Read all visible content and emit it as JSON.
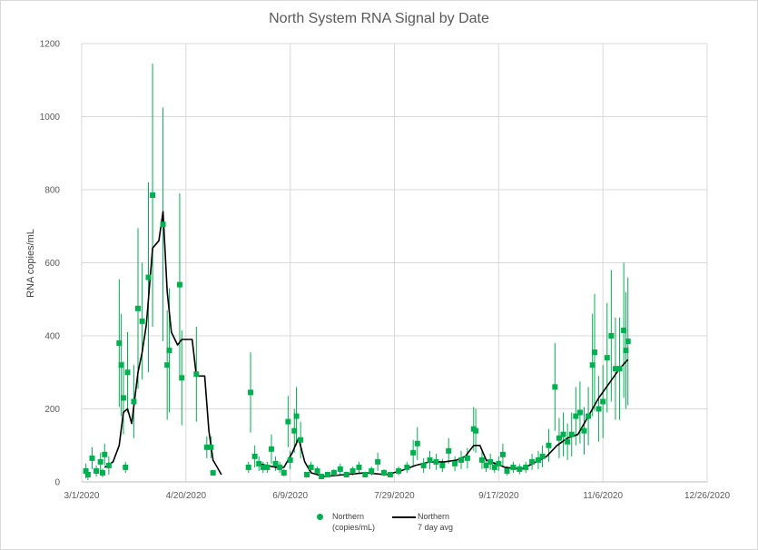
{
  "chart_data": {
    "type": "scatter",
    "title": "North System RNA Signal by Date",
    "ylabel": "RNA copies/mL",
    "xlabel": "",
    "ylim": [
      0,
      1200
    ],
    "yticks": [
      0,
      200,
      400,
      600,
      800,
      1000,
      1200
    ],
    "xlim": [
      "3/1/2020",
      "12/26/2020"
    ],
    "xticks": [
      "3/1/2020",
      "4/20/2020",
      "6/9/2020",
      "7/29/2020",
      "9/17/2020",
      "11/6/2020",
      "12/26/2020"
    ],
    "grid": true,
    "legend_position": "bottom",
    "colors": {
      "points": "#00b050",
      "avg_line": "#000000"
    },
    "series": [
      {
        "name": "Northern (copies/mL)",
        "style": "points-with-error-bars",
        "points": [
          {
            "date": "2020-03-03",
            "y": 30,
            "err": 20
          },
          {
            "date": "2020-03-04",
            "y": 20,
            "err": 15
          },
          {
            "date": "2020-03-06",
            "y": 65,
            "err": 30
          },
          {
            "date": "2020-03-08",
            "y": 30,
            "err": 15
          },
          {
            "date": "2020-03-10",
            "y": 55,
            "err": 25
          },
          {
            "date": "2020-03-11",
            "y": 25,
            "err": 12
          },
          {
            "date": "2020-03-12",
            "y": 75,
            "err": 30
          },
          {
            "date": "2020-03-14",
            "y": 45,
            "err": 25
          },
          {
            "date": "2020-03-19",
            "y": 380,
            "err": 175
          },
          {
            "date": "2020-03-20",
            "y": 320,
            "err": 140
          },
          {
            "date": "2020-03-21",
            "y": 230,
            "err": 100
          },
          {
            "date": "2020-03-22",
            "y": 40,
            "err": 15
          },
          {
            "date": "2020-03-23",
            "y": 300,
            "err": 110
          },
          {
            "date": "2020-03-26",
            "y": 220,
            "err": 100
          },
          {
            "date": "2020-03-28",
            "y": 475,
            "err": 220
          },
          {
            "date": "2020-03-30",
            "y": 440,
            "err": 160
          },
          {
            "date": "2020-04-02",
            "y": 560,
            "err": 260
          },
          {
            "date": "2020-04-04",
            "y": 785,
            "err": 360
          },
          {
            "date": "2020-04-09",
            "y": 705,
            "err": 320
          },
          {
            "date": "2020-04-11",
            "y": 320,
            "err": 150
          },
          {
            "date": "2020-04-12",
            "y": 360,
            "err": 170
          },
          {
            "date": "2020-04-17",
            "y": 540,
            "err": 250
          },
          {
            "date": "2020-04-18",
            "y": 285,
            "err": 130
          },
          {
            "date": "2020-04-25",
            "y": 295,
            "err": 130
          },
          {
            "date": "2020-04-30",
            "y": 95,
            "err": 30
          },
          {
            "date": "2020-05-02",
            "y": 95,
            "err": 30
          },
          {
            "date": "2020-05-03",
            "y": 25,
            "err": 8
          },
          {
            "date": "2020-05-20",
            "y": 40,
            "err": 15
          },
          {
            "date": "2020-05-21",
            "y": 245,
            "err": 110
          },
          {
            "date": "2020-05-23",
            "y": 70,
            "err": 30
          },
          {
            "date": "2020-05-25",
            "y": 50,
            "err": 20
          },
          {
            "date": "2020-05-27",
            "y": 40,
            "err": 15
          },
          {
            "date": "2020-05-29",
            "y": 40,
            "err": 15
          },
          {
            "date": "2020-05-31",
            "y": 90,
            "err": 40
          },
          {
            "date": "2020-06-02",
            "y": 50,
            "err": 20
          },
          {
            "date": "2020-06-04",
            "y": 40,
            "err": 15
          },
          {
            "date": "2020-06-06",
            "y": 25,
            "err": 10
          },
          {
            "date": "2020-06-08",
            "y": 165,
            "err": 70
          },
          {
            "date": "2020-06-09",
            "y": 60,
            "err": 25
          },
          {
            "date": "2020-06-11",
            "y": 140,
            "err": 60
          },
          {
            "date": "2020-06-12",
            "y": 180,
            "err": 80
          },
          {
            "date": "2020-06-14",
            "y": 115,
            "err": 50
          },
          {
            "date": "2020-06-17",
            "y": 20,
            "err": 8
          },
          {
            "date": "2020-06-19",
            "y": 40,
            "err": 15
          },
          {
            "date": "2020-06-22",
            "y": 30,
            "err": 12
          },
          {
            "date": "2020-06-24",
            "y": 15,
            "err": 6
          },
          {
            "date": "2020-06-27",
            "y": 20,
            "err": 8
          },
          {
            "date": "2020-06-30",
            "y": 25,
            "err": 10
          },
          {
            "date": "2020-07-03",
            "y": 35,
            "err": 15
          },
          {
            "date": "2020-07-06",
            "y": 20,
            "err": 8
          },
          {
            "date": "2020-07-09",
            "y": 30,
            "err": 12
          },
          {
            "date": "2020-07-12",
            "y": 40,
            "err": 15
          },
          {
            "date": "2020-07-15",
            "y": 20,
            "err": 8
          },
          {
            "date": "2020-07-18",
            "y": 30,
            "err": 12
          },
          {
            "date": "2020-07-21",
            "y": 55,
            "err": 25
          },
          {
            "date": "2020-07-24",
            "y": 25,
            "err": 10
          },
          {
            "date": "2020-07-27",
            "y": 20,
            "err": 8
          },
          {
            "date": "2020-07-31",
            "y": 30,
            "err": 12
          },
          {
            "date": "2020-08-04",
            "y": 40,
            "err": 15
          },
          {
            "date": "2020-08-07",
            "y": 80,
            "err": 35
          },
          {
            "date": "2020-08-09",
            "y": 105,
            "err": 45
          },
          {
            "date": "2020-08-12",
            "y": 45,
            "err": 20
          },
          {
            "date": "2020-08-15",
            "y": 60,
            "err": 25
          },
          {
            "date": "2020-08-18",
            "y": 55,
            "err": 22
          },
          {
            "date": "2020-08-21",
            "y": 45,
            "err": 18
          },
          {
            "date": "2020-08-24",
            "y": 85,
            "err": 35
          },
          {
            "date": "2020-08-27",
            "y": 50,
            "err": 20
          },
          {
            "date": "2020-08-30",
            "y": 60,
            "err": 25
          },
          {
            "date": "2020-09-02",
            "y": 65,
            "err": 28
          },
          {
            "date": "2020-09-05",
            "y": 145,
            "err": 60
          },
          {
            "date": "2020-09-06",
            "y": 140,
            "err": 60
          },
          {
            "date": "2020-09-09",
            "y": 60,
            "err": 25
          },
          {
            "date": "2020-09-11",
            "y": 45,
            "err": 18
          },
          {
            "date": "2020-09-13",
            "y": 55,
            "err": 22
          },
          {
            "date": "2020-09-15",
            "y": 40,
            "err": 15
          },
          {
            "date": "2020-09-17",
            "y": 50,
            "err": 20
          },
          {
            "date": "2020-09-19",
            "y": 75,
            "err": 30
          },
          {
            "date": "2020-09-21",
            "y": 30,
            "err": 12
          },
          {
            "date": "2020-09-24",
            "y": 40,
            "err": 15
          },
          {
            "date": "2020-09-27",
            "y": 35,
            "err": 14
          },
          {
            "date": "2020-09-30",
            "y": 40,
            "err": 15
          },
          {
            "date": "2020-10-03",
            "y": 55,
            "err": 22
          },
          {
            "date": "2020-10-06",
            "y": 60,
            "err": 25
          },
          {
            "date": "2020-10-08",
            "y": 70,
            "err": 30
          },
          {
            "date": "2020-10-11",
            "y": 100,
            "err": 45
          },
          {
            "date": "2020-10-14",
            "y": 260,
            "err": 120
          },
          {
            "date": "2020-10-16",
            "y": 120,
            "err": 55
          },
          {
            "date": "2020-10-18",
            "y": 130,
            "err": 60
          },
          {
            "date": "2020-10-20",
            "y": 110,
            "err": 50
          },
          {
            "date": "2020-10-22",
            "y": 130,
            "err": 60
          },
          {
            "date": "2020-10-24",
            "y": 180,
            "err": 80
          },
          {
            "date": "2020-10-26",
            "y": 190,
            "err": 85
          },
          {
            "date": "2020-10-28",
            "y": 140,
            "err": 65
          },
          {
            "date": "2020-10-30",
            "y": 180,
            "err": 80
          },
          {
            "date": "2020-11-01",
            "y": 320,
            "err": 140
          },
          {
            "date": "2020-11-02",
            "y": 355,
            "err": 160
          },
          {
            "date": "2020-11-04",
            "y": 200,
            "err": 90
          },
          {
            "date": "2020-11-06",
            "y": 220,
            "err": 100
          },
          {
            "date": "2020-11-08",
            "y": 340,
            "err": 150
          },
          {
            "date": "2020-11-10",
            "y": 400,
            "err": 180
          },
          {
            "date": "2020-11-12",
            "y": 310,
            "err": 140
          },
          {
            "date": "2020-11-14",
            "y": 310,
            "err": 140
          },
          {
            "date": "2020-11-16",
            "y": 415,
            "err": 185
          },
          {
            "date": "2020-11-17",
            "y": 360,
            "err": 160
          },
          {
            "date": "2020-11-18",
            "y": 385,
            "err": 175
          }
        ]
      },
      {
        "name": "Northern 7 day avg",
        "style": "line",
        "points": [
          {
            "date": "2020-03-12",
            "y": 40
          },
          {
            "date": "2020-03-16",
            "y": 55
          },
          {
            "date": "2020-03-19",
            "y": 100
          },
          {
            "date": "2020-03-21",
            "y": 190
          },
          {
            "date": "2020-03-23",
            "y": 200
          },
          {
            "date": "2020-03-25",
            "y": 160
          },
          {
            "date": "2020-03-28",
            "y": 300
          },
          {
            "date": "2020-03-30",
            "y": 355
          },
          {
            "date": "2020-04-01",
            "y": 430
          },
          {
            "date": "2020-04-04",
            "y": 640
          },
          {
            "date": "2020-04-07",
            "y": 660
          },
          {
            "date": "2020-04-09",
            "y": 740
          },
          {
            "date": "2020-04-11",
            "y": 520
          },
          {
            "date": "2020-04-13",
            "y": 410
          },
          {
            "date": "2020-04-16",
            "y": 375
          },
          {
            "date": "2020-04-18",
            "y": 390
          },
          {
            "date": "2020-04-23",
            "y": 390
          },
          {
            "date": "2020-04-25",
            "y": 290
          },
          {
            "date": "2020-04-29",
            "y": 290
          },
          {
            "date": "2020-05-01",
            "y": 140
          },
          {
            "date": "2020-05-03",
            "y": 60
          },
          {
            "date": "2020-05-05",
            "y": 40
          },
          {
            "date": "2020-05-07",
            "y": 20
          },
          {
            "date": "2020-05-25",
            "y": 50
          },
          {
            "date": "2020-05-29",
            "y": 45
          },
          {
            "date": "2020-06-02",
            "y": 40
          },
          {
            "date": "2020-06-06",
            "y": 40
          },
          {
            "date": "2020-06-10",
            "y": 80
          },
          {
            "date": "2020-06-13",
            "y": 120
          },
          {
            "date": "2020-06-16",
            "y": 55
          },
          {
            "date": "2020-06-19",
            "y": 25
          },
          {
            "date": "2020-06-25",
            "y": 15
          },
          {
            "date": "2020-07-05",
            "y": 20
          },
          {
            "date": "2020-07-15",
            "y": 25
          },
          {
            "date": "2020-07-25",
            "y": 20
          },
          {
            "date": "2020-08-01",
            "y": 30
          },
          {
            "date": "2020-08-08",
            "y": 45
          },
          {
            "date": "2020-08-15",
            "y": 55
          },
          {
            "date": "2020-08-22",
            "y": 55
          },
          {
            "date": "2020-08-28",
            "y": 60
          },
          {
            "date": "2020-09-01",
            "y": 70
          },
          {
            "date": "2020-09-05",
            "y": 100
          },
          {
            "date": "2020-09-08",
            "y": 100
          },
          {
            "date": "2020-09-11",
            "y": 60
          },
          {
            "date": "2020-09-20",
            "y": 40
          },
          {
            "date": "2020-09-28",
            "y": 35
          },
          {
            "date": "2020-10-05",
            "y": 55
          },
          {
            "date": "2020-10-10",
            "y": 70
          },
          {
            "date": "2020-10-15",
            "y": 100
          },
          {
            "date": "2020-10-20",
            "y": 120
          },
          {
            "date": "2020-10-25",
            "y": 130
          },
          {
            "date": "2020-10-30",
            "y": 180
          },
          {
            "date": "2020-11-04",
            "y": 230
          },
          {
            "date": "2020-11-09",
            "y": 270
          },
          {
            "date": "2020-11-14",
            "y": 310
          },
          {
            "date": "2020-11-18",
            "y": 335
          }
        ]
      }
    ]
  },
  "legend": {
    "points_label_line1": "Northern",
    "points_label_line2": "(copies/mL)",
    "line_label_line1": "Northern",
    "line_label_line2": "7 day avg"
  }
}
